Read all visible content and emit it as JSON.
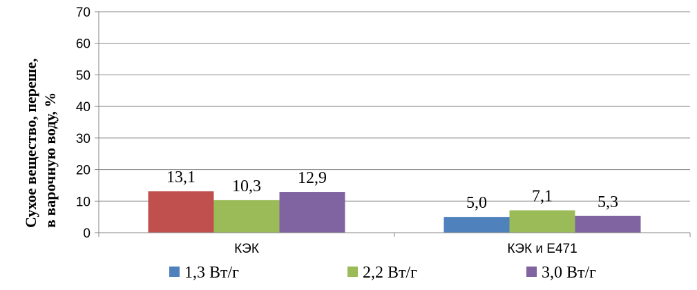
{
  "chart_data": {
    "type": "bar",
    "categories": [
      "КЭК",
      "КЭК и E471"
    ],
    "series": [
      {
        "name": "1,3 Вт/г",
        "values": [
          null,
          5.0
        ],
        "labels": [
          "",
          "5,0"
        ],
        "color": "#4f81bd"
      },
      {
        "name": "2,2 Вт/г",
        "values": [
          10.3,
          7.1
        ],
        "labels": [
          "10,3",
          "7,1"
        ],
        "color": "#9bbb59"
      },
      {
        "name": "3,0 Вт/г",
        "values": [
          12.9,
          5.3
        ],
        "labels": [
          "12,9",
          "5,3"
        ],
        "color": "#8064a2"
      }
    ],
    "extra_bar": {
      "category": "КЭК",
      "value": 13.1,
      "label": "13,1",
      "color": "#c0504d"
    },
    "ylabel_line1": "Сухое   вещество,  переше,",
    "ylabel_line2": "в варочную воду,  %",
    "ylim": [
      0,
      70
    ],
    "yticks": [
      0,
      10,
      20,
      30,
      40,
      50,
      60,
      70
    ],
    "grid": true,
    "legend_position": "bottom"
  }
}
